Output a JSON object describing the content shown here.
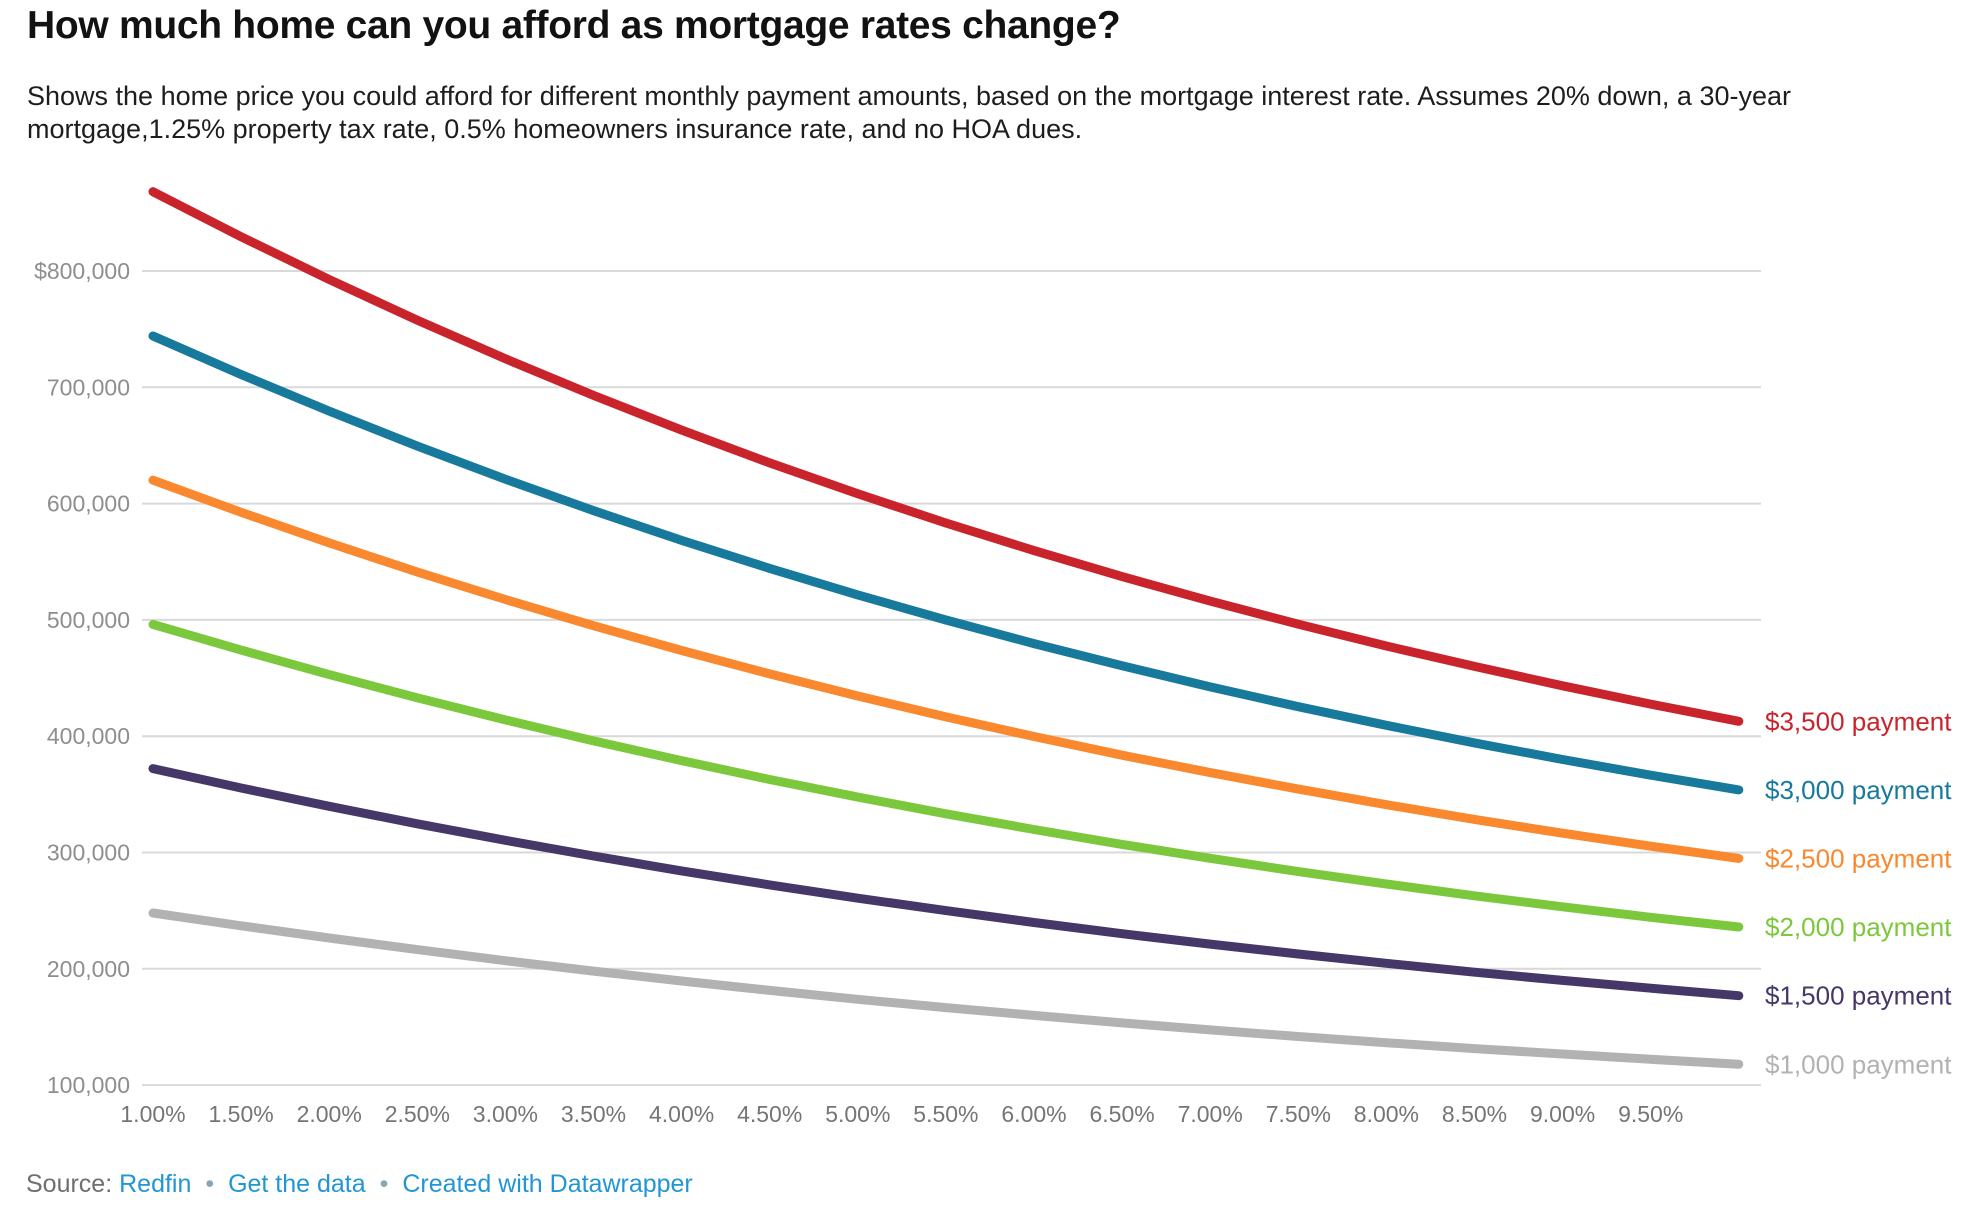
{
  "header": {
    "title": "How much home can you afford as mortgage rates change?",
    "description": "Shows the home price you could afford for different monthly payment amounts, based on the mortgage interest rate. Assumes 20% down, a 30-year mortgage,1.25% property tax rate, 0.5% homeowners insurance rate, and no HOA dues."
  },
  "footer": {
    "source_label": "Source:",
    "source_link": "Redfin",
    "separator": "•",
    "get_data_link": "Get the data",
    "attribution_link": "Created with Datawrapper"
  },
  "colors": {
    "grid": "#d9d9d9",
    "x_axis_text": "#757575",
    "y_axis_text": "#8e8e8e",
    "title_text": "#121212",
    "description_text": "#1d1d1d",
    "footer_text": "#6f6f6f",
    "link": "#2196d3"
  },
  "chart_data": {
    "type": "line",
    "grid": "horizontal",
    "legend_position": "line-end-labels",
    "x_range": [
      1.0,
      10.0
    ],
    "y_range": [
      100000,
      870000
    ],
    "x": [
      1.0,
      1.5,
      2.0,
      2.5,
      3.0,
      3.5,
      4.0,
      4.5,
      5.0,
      5.5,
      6.0,
      6.5,
      7.0,
      7.5,
      8.0,
      8.5,
      9.0,
      9.5,
      10.0
    ],
    "x_tick_labels": [
      "1.00%",
      "1.50%",
      "2.00%",
      "2.50%",
      "3.00%",
      "3.50%",
      "4.00%",
      "4.50%",
      "5.00%",
      "5.50%",
      "6.00%",
      "6.50%",
      "7.00%",
      "7.50%",
      "8.00%",
      "8.50%",
      "9.00%",
      "9.50%"
    ],
    "y_ticks": [
      {
        "value": 100000,
        "label": "100,000"
      },
      {
        "value": 200000,
        "label": "200,000"
      },
      {
        "value": 300000,
        "label": "300,000"
      },
      {
        "value": 400000,
        "label": "400,000"
      },
      {
        "value": 500000,
        "label": "500,000"
      },
      {
        "value": 600000,
        "label": "600,000"
      },
      {
        "value": 700000,
        "label": "700,000"
      },
      {
        "value": 800000,
        "label": "$800,000"
      }
    ],
    "series": [
      {
        "name": "$3,500 payment",
        "color": "#c9242c",
        "values": [
          868200,
          829500,
          792700,
          757700,
          724500,
          693000,
          663200,
          635000,
          608400,
          583300,
          559600,
          537200,
          516200,
          496300,
          477600,
          460000,
          443300,
          427600,
          412800
        ]
      },
      {
        "name": "$3,000 payment",
        "color": "#17799c",
        "values": [
          744100,
          711000,
          679500,
          649400,
          621000,
          594000,
          568400,
          544300,
          521500,
          499900,
          479600,
          460500,
          442400,
          425400,
          409400,
          394200,
          380000,
          366500,
          353800
        ]
      },
      {
        "name": "$2,500 payment",
        "color": "#f9882e",
        "values": [
          620100,
          592500,
          566200,
          541200,
          517500,
          495000,
          473700,
          453600,
          434600,
          416600,
          399700,
          383700,
          368700,
          354500,
          341100,
          328500,
          316600,
          305400,
          294900
        ]
      },
      {
        "name": "$2,000 payment",
        "color": "#7cc83d",
        "values": [
          496100,
          474000,
          453000,
          433000,
          414000,
          396000,
          379000,
          362800,
          347600,
          333300,
          319800,
          307000,
          295000,
          283600,
          272900,
          262800,
          253300,
          244300,
          235900
        ]
      },
      {
        "name": "$1,500 payment",
        "color": "#463769",
        "values": [
          372100,
          355500,
          339700,
          324700,
          310500,
          297000,
          284200,
          272100,
          260700,
          250000,
          239800,
          230200,
          221200,
          212700,
          204700,
          197100,
          190000,
          183300,
          176900
        ]
      },
      {
        "name": "$1,000 payment",
        "color": "#b2b2b2",
        "values": [
          248000,
          237000,
          226500,
          216500,
          207000,
          198000,
          189500,
          181400,
          173800,
          166600,
          159900,
          153500,
          147500,
          141800,
          136500,
          131400,
          126700,
          122200,
          117900
        ]
      }
    ]
  }
}
